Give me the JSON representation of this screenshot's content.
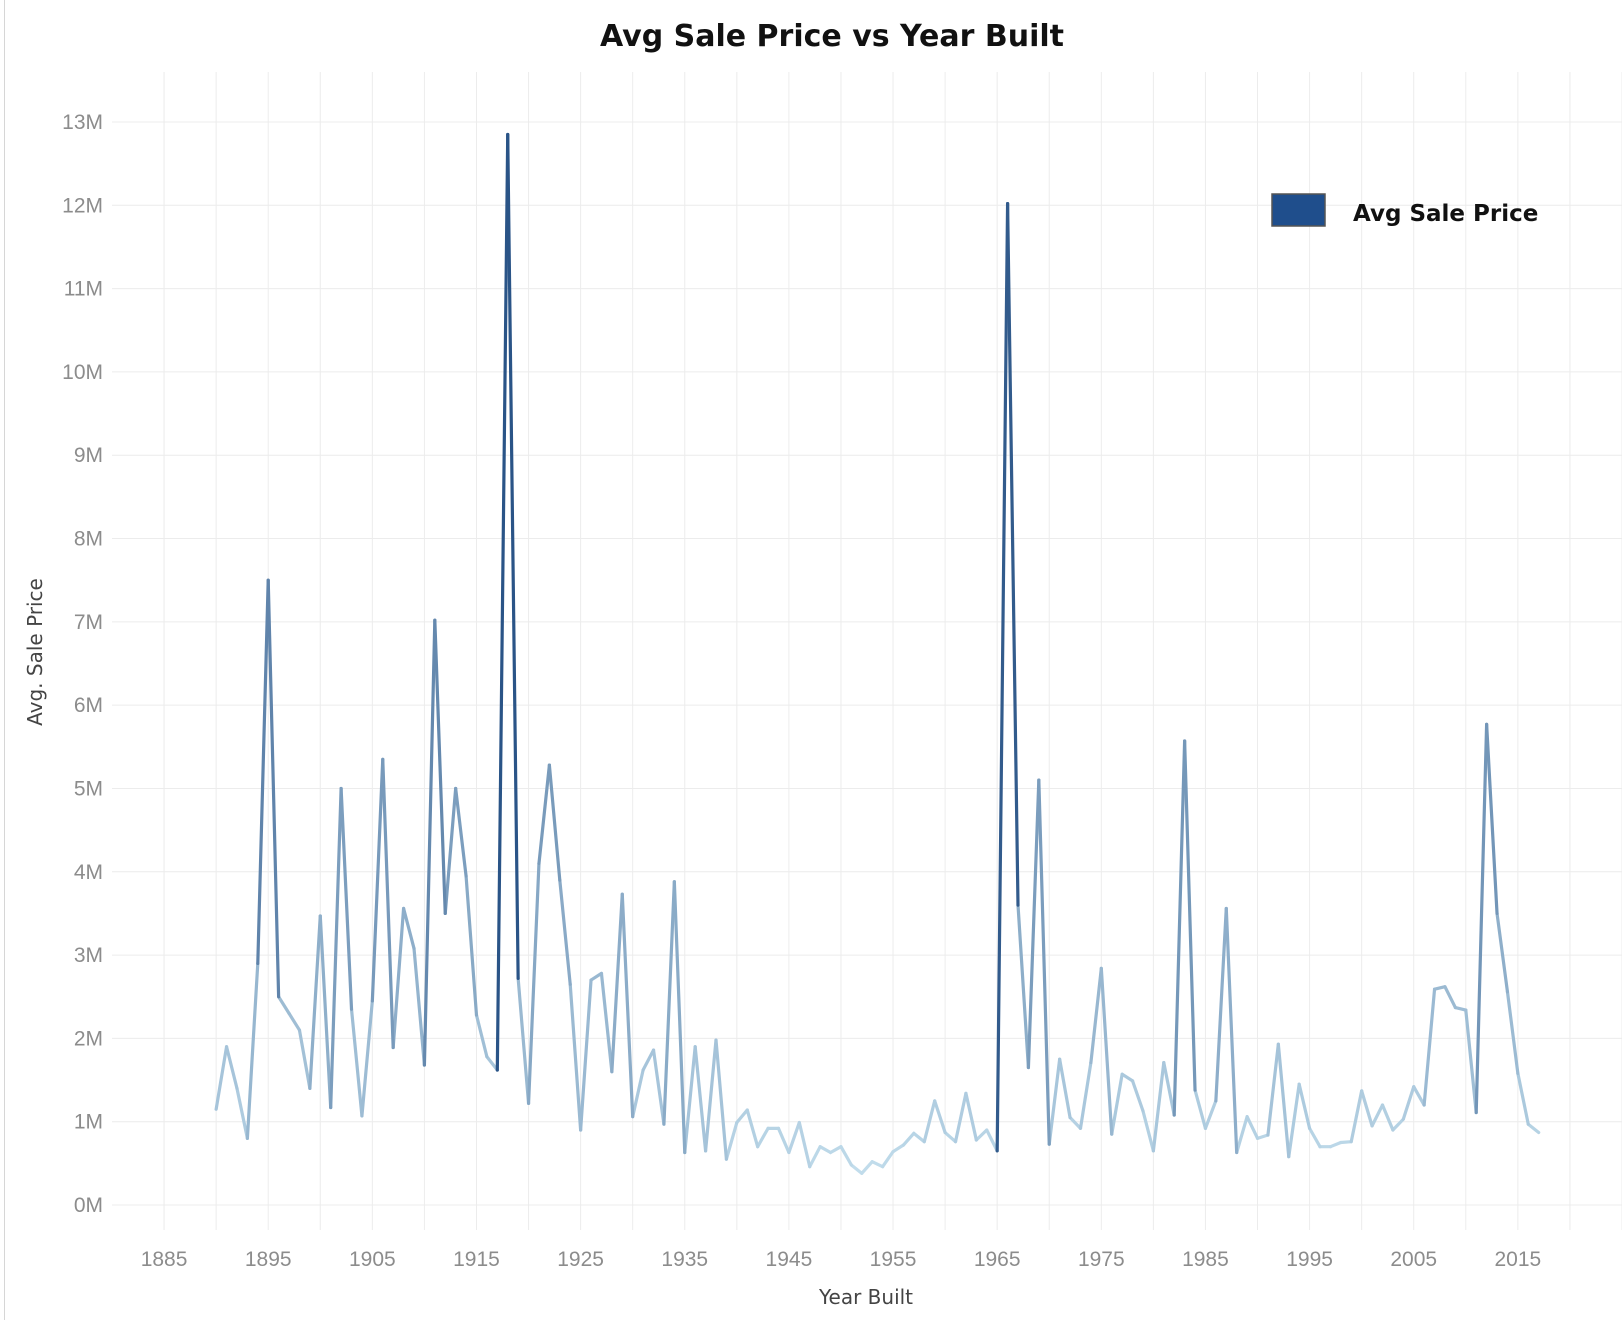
{
  "chart_data": {
    "type": "line",
    "title": "Avg Sale Price vs Year Built",
    "xlabel": "Year Built",
    "ylabel": "Avg. Sale Price",
    "xlim": [
      1880,
      2025
    ],
    "ylim": [
      -300000,
      13600000
    ],
    "x_ticks": [
      1885,
      1895,
      1905,
      1915,
      1925,
      1935,
      1945,
      1955,
      1965,
      1975,
      1985,
      1995,
      2005,
      2015
    ],
    "y_ticks": [
      0,
      1000000,
      2000000,
      3000000,
      4000000,
      5000000,
      6000000,
      7000000,
      8000000,
      9000000,
      10000000,
      11000000,
      12000000,
      13000000
    ],
    "y_tick_labels": [
      "0M",
      "1M",
      "2M",
      "3M",
      "4M",
      "5M",
      "6M",
      "7M",
      "8M",
      "9M",
      "10M",
      "11M",
      "12M",
      "13M"
    ],
    "grid": true,
    "legend": {
      "position": "top-right",
      "entries": [
        "Avg Sale Price"
      ]
    },
    "color_scale": {
      "low": "#c6e1ef",
      "high": "#2a5487",
      "legend_swatch": "#1f4e8c"
    },
    "series": [
      {
        "name": "Avg Sale Price",
        "x": [
          1890,
          1891,
          1892,
          1893,
          1894,
          1895,
          1896,
          1897,
          1898,
          1899,
          1900,
          1901,
          1902,
          1903,
          1904,
          1905,
          1906,
          1907,
          1908,
          1909,
          1910,
          1911,
          1912,
          1913,
          1914,
          1915,
          1916,
          1917,
          1918,
          1919,
          1920,
          1921,
          1922,
          1923,
          1924,
          1925,
          1926,
          1927,
          1928,
          1929,
          1930,
          1931,
          1932,
          1933,
          1934,
          1935,
          1936,
          1937,
          1938,
          1939,
          1940,
          1941,
          1942,
          1943,
          1944,
          1945,
          1946,
          1947,
          1948,
          1949,
          1950,
          1951,
          1952,
          1953,
          1954,
          1955,
          1956,
          1957,
          1958,
          1959,
          1960,
          1961,
          1962,
          1963,
          1964,
          1965,
          1966,
          1967,
          1968,
          1969,
          1970,
          1971,
          1972,
          1973,
          1974,
          1975,
          1976,
          1977,
          1978,
          1979,
          1980,
          1981,
          1982,
          1983,
          1984,
          1985,
          1986,
          1987,
          1988,
          1989,
          1990,
          1991,
          1992,
          1993,
          1994,
          1995,
          1996,
          1997,
          1998,
          1999,
          2000,
          2001,
          2002,
          2003,
          2004,
          2005,
          2006,
          2007,
          2008,
          2009,
          2010,
          2011,
          2012,
          2013,
          2014,
          2015,
          2016,
          2017
        ],
        "values": [
          1150000,
          1900000,
          1400000,
          800000,
          2900000,
          7500000,
          2500000,
          2300000,
          2100000,
          1400000,
          3470000,
          1170000,
          5000000,
          2350000,
          1070000,
          2450000,
          5350000,
          1890000,
          3560000,
          3080000,
          1680000,
          7020000,
          3500000,
          5000000,
          3950000,
          2280000,
          1780000,
          1620000,
          12850000,
          2720000,
          1220000,
          4100000,
          5280000,
          3900000,
          2650000,
          900000,
          2700000,
          2780000,
          1600000,
          3730000,
          1060000,
          1620000,
          1860000,
          970000,
          3880000,
          630000,
          1900000,
          650000,
          1980000,
          550000,
          990000,
          1140000,
          700000,
          920000,
          920000,
          630000,
          990000,
          460000,
          700000,
          630000,
          700000,
          480000,
          380000,
          520000,
          460000,
          640000,
          720000,
          860000,
          760000,
          1250000,
          870000,
          760000,
          1340000,
          780000,
          900000,
          650000,
          12020000,
          3600000,
          1650000,
          5100000,
          730000,
          1750000,
          1050000,
          920000,
          1710000,
          2840000,
          850000,
          1570000,
          1490000,
          1130000,
          650000,
          1710000,
          1080000,
          5570000,
          1380000,
          920000,
          1250000,
          3560000,
          630000,
          1060000,
          800000,
          840000,
          1930000,
          580000,
          1450000,
          920000,
          700000,
          700000,
          750000,
          760000,
          1370000,
          950000,
          1200000,
          900000,
          1030000,
          1420000,
          1200000,
          2590000,
          2620000,
          2370000,
          2340000,
          1110000,
          5770000,
          3500000,
          2560000,
          1580000,
          970000,
          870000
        ]
      }
    ]
  }
}
